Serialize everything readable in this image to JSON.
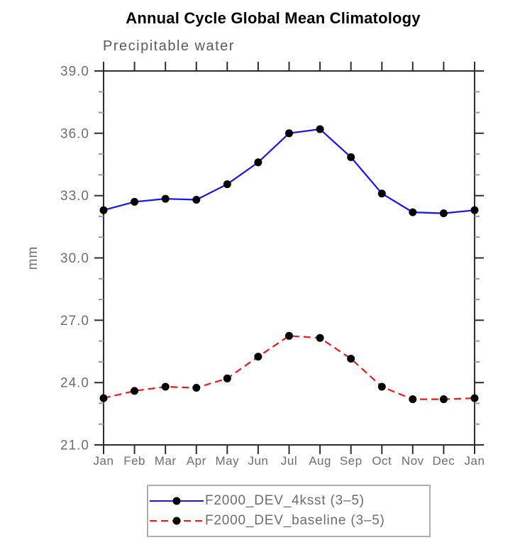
{
  "chart_data": {
    "type": "line",
    "title": "Annual Cycle Global Mean Climatology",
    "subtitle": "Precipitable water",
    "ylabel": "mm",
    "xlabel": "",
    "categories": [
      "Jan",
      "Feb",
      "Mar",
      "Apr",
      "May",
      "Jun",
      "Jul",
      "Aug",
      "Sep",
      "Oct",
      "Nov",
      "Dec",
      "Jan"
    ],
    "ylim": [
      21.0,
      39.0
    ],
    "ytick_major_interval": 3.0,
    "ytick_minor_interval": 1.0,
    "ytick_major_labels": [
      "21.0",
      "24.0",
      "27.0",
      "30.0",
      "33.0",
      "36.0",
      "39.0"
    ],
    "grid": false,
    "legend_position": "bottom-center",
    "series": [
      {
        "name": "F2000_DEV_4ksst (3–5)",
        "line_style": "solid",
        "line_color": "#1414f5",
        "marker": "filled-circle",
        "marker_color": "#000000",
        "values": [
          32.3,
          32.7,
          32.85,
          32.8,
          33.55,
          34.6,
          36.0,
          36.2,
          34.85,
          33.1,
          32.2,
          32.15,
          32.3
        ]
      },
      {
        "name": "F2000_DEV_baseline (3–5)",
        "line_style": "dashed",
        "line_color": "#f51414",
        "marker": "filled-circle",
        "marker_color": "#000000",
        "values": [
          23.25,
          23.6,
          23.8,
          23.75,
          24.2,
          25.25,
          26.25,
          26.15,
          25.15,
          23.8,
          23.2,
          23.2,
          23.25
        ]
      }
    ],
    "colors": {
      "axis": "#2e2e2e",
      "minor_tick": "#9a9a9a",
      "tick_label": "#6e6e6e",
      "title": "#000000",
      "subtitle": "#5a5a5a",
      "legend_border": "#b0b0b0"
    }
  }
}
